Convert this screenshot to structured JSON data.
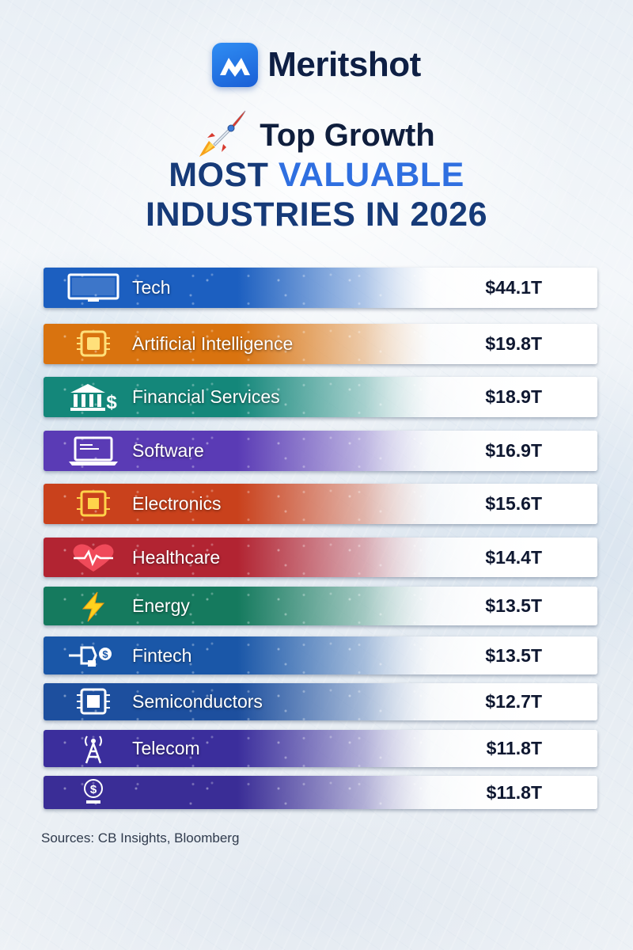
{
  "brand": {
    "name": "Meritshot"
  },
  "header": {
    "tagline": "Top Growth",
    "title_line1_a": "MOST ",
    "title_line1_b": "VALUABLE",
    "title_line2": "INDUSTRIES IN 2026"
  },
  "footer": {
    "sources": "Sources: CB Insights, Bloomberg"
  },
  "colors": {
    "brand_blue": "#1f6fe5",
    "title_navy": "#163a78",
    "title_accent": "#2f6fe0"
  },
  "chart_data": {
    "type": "bar",
    "orientation": "horizontal",
    "categories": [
      "Tech",
      "Artificial Intelligence",
      "Financial Services",
      "Software",
      "Electronics",
      "Healthcare",
      "Energy",
      "Fintech",
      "Semiconductors",
      "Telecom",
      ""
    ],
    "values": [
      44.1,
      19.8,
      18.9,
      16.9,
      15.6,
      14.4,
      13.5,
      13.5,
      12.7,
      11.8,
      11.8
    ],
    "value_labels": [
      "$44.1T",
      "$19.8T",
      "$18.9T",
      "$16.9T",
      "$15.6T",
      "$14.4T",
      "$13.5T",
      "$13.5T",
      "$12.7T",
      "$11.8T",
      "$11.8T"
    ],
    "unit": "T",
    "icons": [
      "monitor-icon",
      "ai-chip-icon",
      "bank-dollar-icon",
      "laptop-icon",
      "circuit-chip-icon",
      "heart-pulse-icon",
      "lightning-icon",
      "plug-icon",
      "processor-icon",
      "antenna-icon",
      "dollar-satellite-icon"
    ],
    "bar_colors": [
      "#1c5fc0",
      "#d9730f",
      "#14877a",
      "#5a3bb5",
      "#c9411c",
      "#b22432",
      "#157a5e",
      "#1a57a8",
      "#1d4f9e",
      "#3b2e9c",
      "#3a2d96"
    ],
    "grid": false,
    "legend": "none"
  }
}
